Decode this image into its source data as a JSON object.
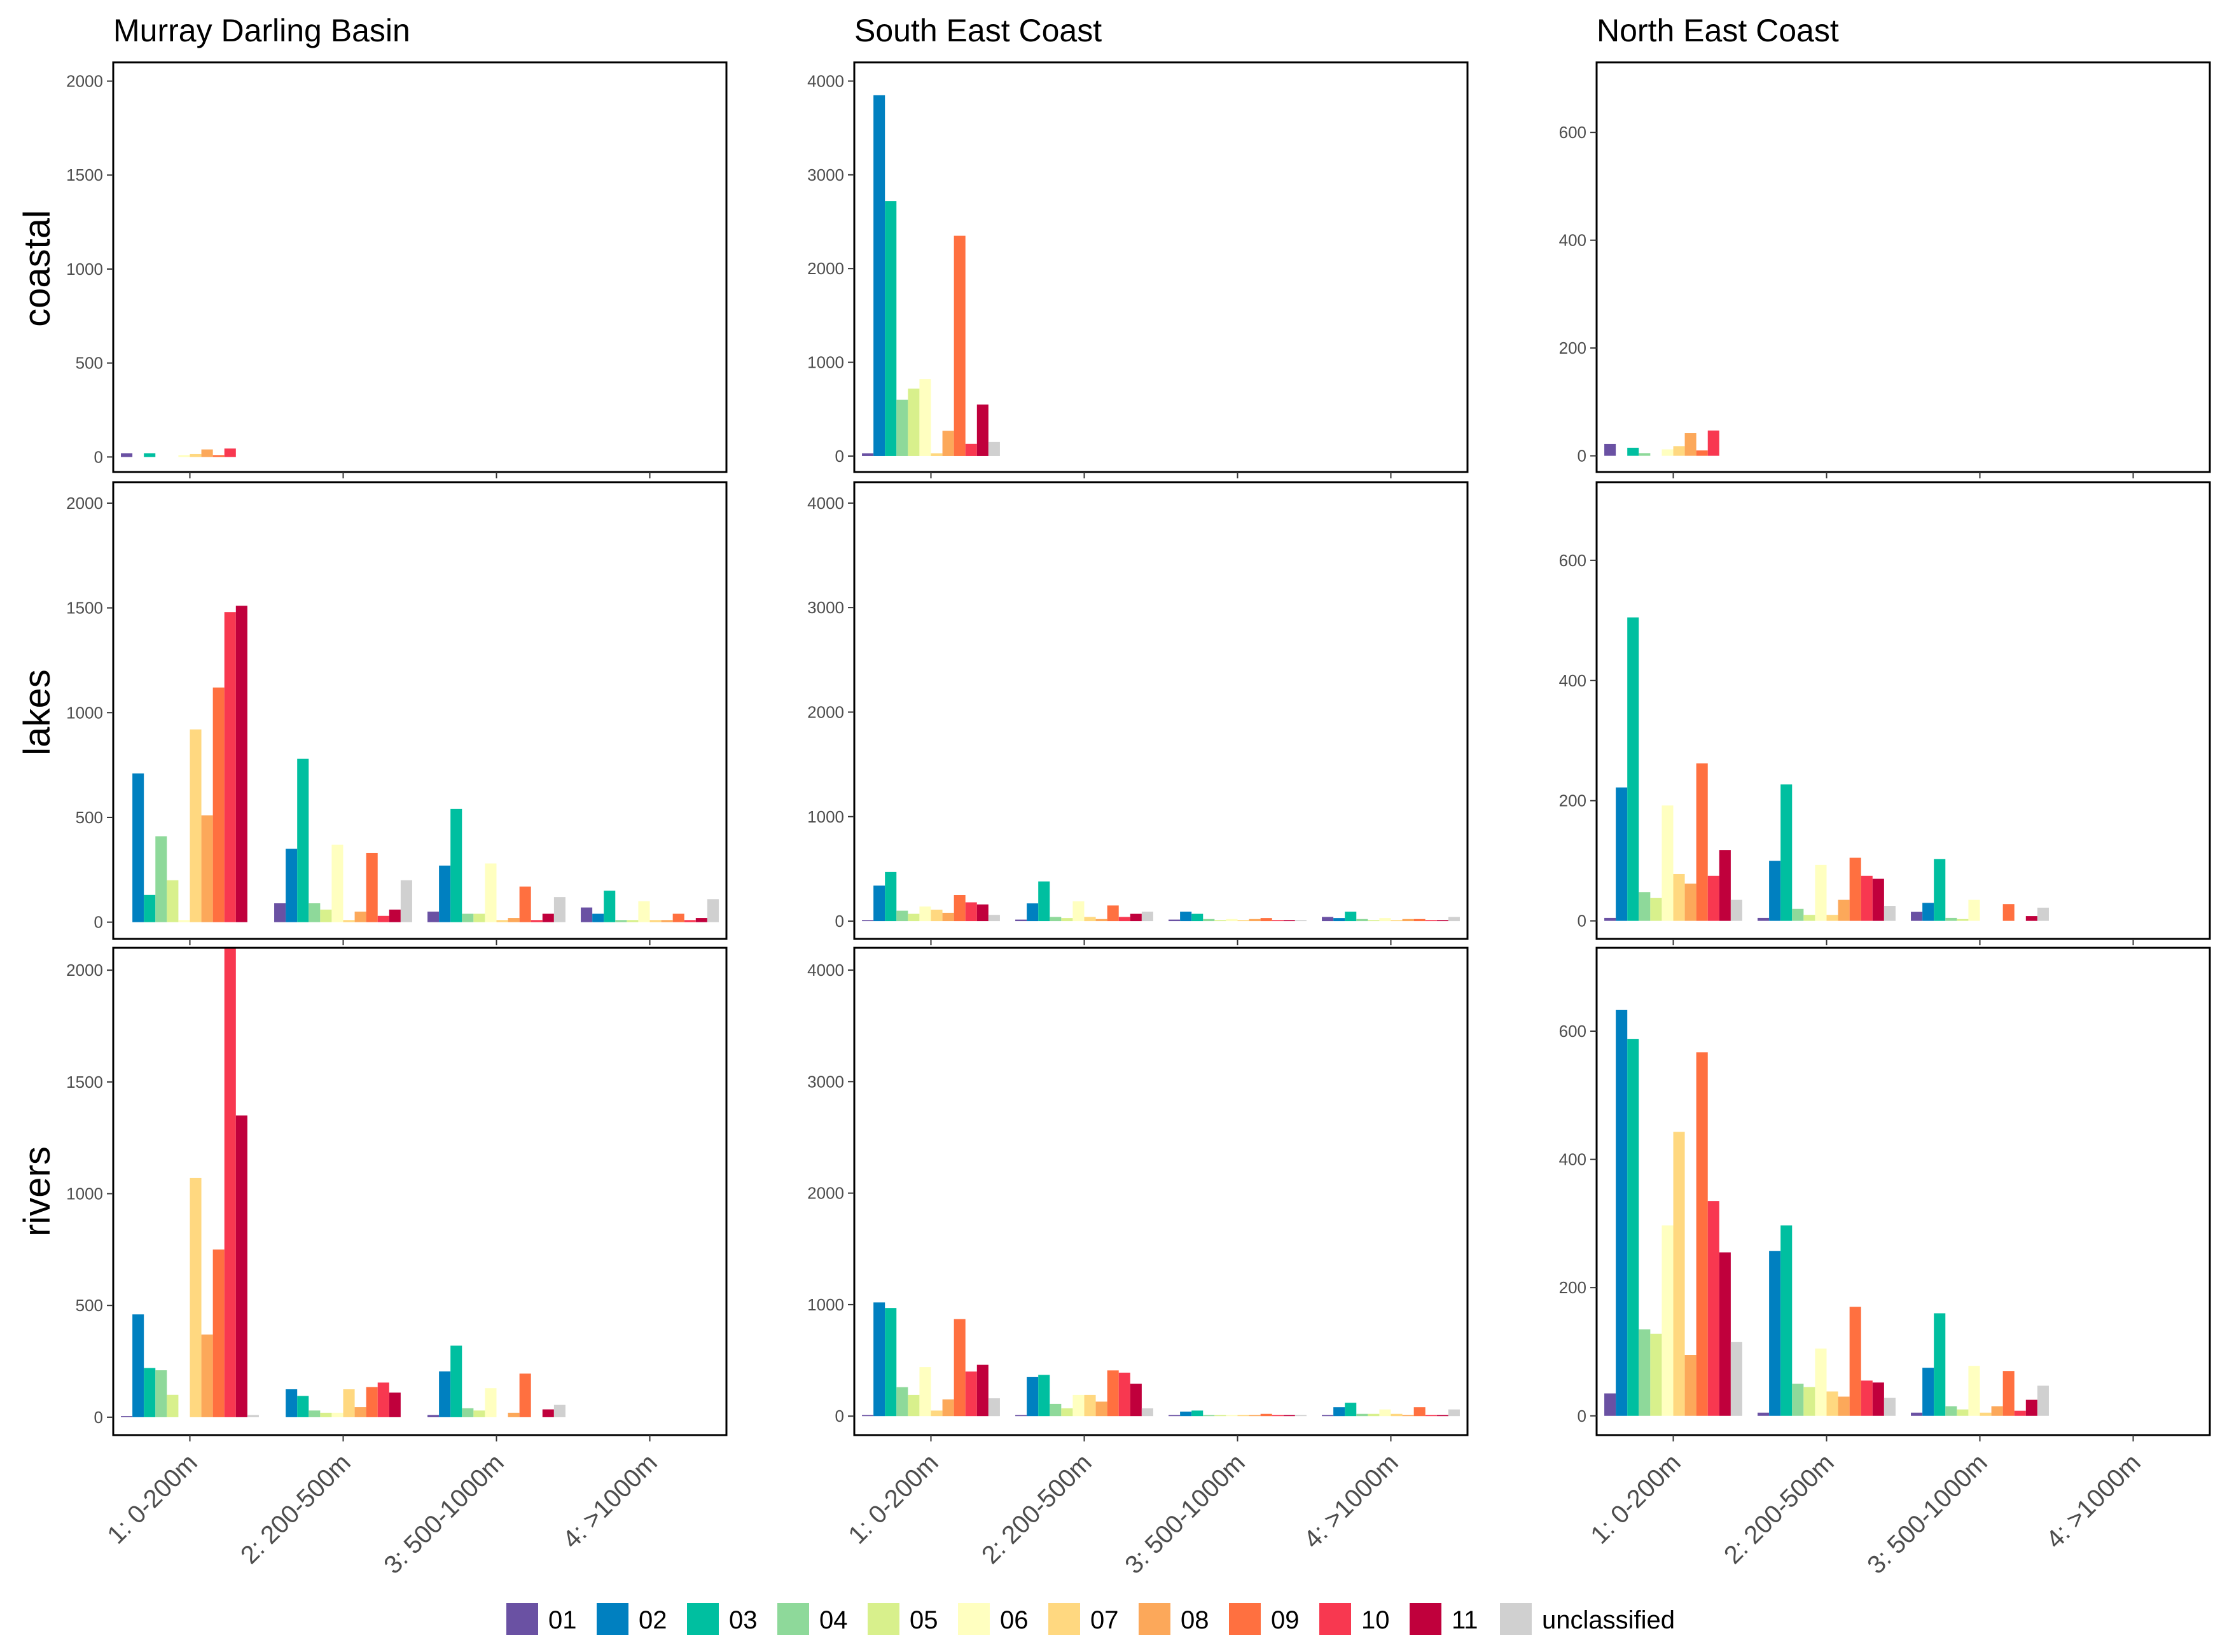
{
  "chart_data": {
    "type": "bar",
    "facet_columns": [
      "Murray Darling Basin",
      "South East Coast",
      "North East Coast"
    ],
    "facet_rows": [
      "coastal",
      "lakes",
      "rivers"
    ],
    "categories": [
      "1: 0-200m",
      "2: 200-500m",
      "3: 500-1000m",
      "4: >1000m"
    ],
    "groups": [
      "01",
      "02",
      "03",
      "04",
      "05",
      "06",
      "07",
      "08",
      "09",
      "10",
      "11",
      "unclassified"
    ],
    "colors": [
      "#6a51a3",
      "#0080c0",
      "#00bfa0",
      "#8ed99a",
      "#d8f08c",
      "#ffffc0",
      "#ffd880",
      "#fca85a",
      "#ff7040",
      "#f83850",
      "#c0003c",
      "#d0d0d0"
    ],
    "axes": {
      "Murray Darling Basin": {
        "ylim": [
          -80,
          2100
        ],
        "ticks": [
          0,
          500,
          1000,
          1500,
          2000
        ]
      },
      "South East Coast": {
        "ylim": [
          -170,
          4200
        ],
        "ticks": [
          0,
          1000,
          2000,
          3000,
          4000
        ]
      },
      "North East Coast": {
        "ylim": [
          -30,
          730
        ],
        "ticks": [
          0,
          200,
          400,
          600
        ]
      }
    },
    "panels": [
      {
        "column": "Murray Darling Basin",
        "row": "coastal",
        "series": [
          [
            20,
            0,
            0,
            0
          ],
          [
            0,
            0,
            0,
            0
          ],
          [
            20,
            0,
            0,
            0
          ],
          [
            0,
            0,
            0,
            0
          ],
          [
            0,
            0,
            0,
            0
          ],
          [
            10,
            0,
            0,
            0
          ],
          [
            15,
            0,
            0,
            0
          ],
          [
            40,
            0,
            0,
            0
          ],
          [
            10,
            0,
            0,
            0
          ],
          [
            45,
            0,
            0,
            0
          ],
          [
            0,
            0,
            0,
            0
          ],
          [
            0,
            0,
            0,
            0
          ]
        ]
      },
      {
        "column": "South East Coast",
        "row": "coastal",
        "series": [
          [
            30,
            0,
            0,
            0
          ],
          [
            3850,
            0,
            0,
            0
          ],
          [
            2720,
            0,
            0,
            0
          ],
          [
            600,
            0,
            0,
            0
          ],
          [
            720,
            0,
            0,
            0
          ],
          [
            820,
            0,
            0,
            0
          ],
          [
            30,
            0,
            0,
            0
          ],
          [
            270,
            0,
            0,
            0
          ],
          [
            2350,
            0,
            0,
            0
          ],
          [
            130,
            0,
            0,
            0
          ],
          [
            550,
            0,
            0,
            0
          ],
          [
            150,
            0,
            0,
            0
          ]
        ]
      },
      {
        "column": "North East Coast",
        "row": "coastal",
        "series": [
          [
            22,
            0,
            0,
            0
          ],
          [
            0,
            0,
            0,
            0
          ],
          [
            15,
            0,
            0,
            0
          ],
          [
            5,
            0,
            0,
            0
          ],
          [
            0,
            0,
            0,
            0
          ],
          [
            12,
            0,
            0,
            0
          ],
          [
            18,
            0,
            0,
            0
          ],
          [
            42,
            0,
            0,
            0
          ],
          [
            10,
            0,
            0,
            0
          ],
          [
            47,
            0,
            0,
            0
          ],
          [
            0,
            0,
            0,
            0
          ],
          [
            0,
            0,
            0,
            0
          ]
        ]
      },
      {
        "column": "Murray Darling Basin",
        "row": "lakes",
        "series": [
          [
            0,
            90,
            50,
            70
          ],
          [
            710,
            350,
            270,
            40
          ],
          [
            130,
            780,
            540,
            150
          ],
          [
            410,
            90,
            40,
            10
          ],
          [
            200,
            60,
            40,
            10
          ],
          [
            10,
            370,
            280,
            100
          ],
          [
            920,
            10,
            10,
            10
          ],
          [
            510,
            50,
            20,
            10
          ],
          [
            1120,
            330,
            170,
            40
          ],
          [
            1480,
            30,
            10,
            10
          ],
          [
            1510,
            60,
            40,
            20
          ],
          [
            0,
            200,
            120,
            110
          ]
        ]
      },
      {
        "column": "South East Coast",
        "row": "lakes",
        "series": [
          [
            10,
            15,
            15,
            40
          ],
          [
            340,
            170,
            90,
            30
          ],
          [
            470,
            380,
            70,
            90
          ],
          [
            100,
            40,
            20,
            20
          ],
          [
            70,
            30,
            10,
            10
          ],
          [
            140,
            190,
            20,
            30
          ],
          [
            110,
            40,
            10,
            10
          ],
          [
            80,
            20,
            20,
            20
          ],
          [
            250,
            150,
            30,
            20
          ],
          [
            180,
            40,
            10,
            10
          ],
          [
            160,
            70,
            10,
            10
          ],
          [
            60,
            90,
            10,
            40
          ]
        ]
      },
      {
        "column": "North East Coast",
        "row": "lakes",
        "series": [
          [
            5,
            5,
            15,
            0
          ],
          [
            222,
            100,
            30,
            0
          ],
          [
            505,
            227,
            103,
            0
          ],
          [
            48,
            20,
            5,
            0
          ],
          [
            38,
            10,
            3,
            0
          ],
          [
            192,
            93,
            35,
            0
          ],
          [
            78,
            10,
            0,
            0
          ],
          [
            62,
            35,
            0,
            0
          ],
          [
            262,
            105,
            28,
            0
          ],
          [
            75,
            75,
            0,
            0
          ],
          [
            118,
            70,
            8,
            0
          ],
          [
            35,
            25,
            22,
            0
          ]
        ]
      },
      {
        "column": "Murray Darling Basin",
        "row": "rivers",
        "series": [
          [
            5,
            0,
            10,
            0
          ],
          [
            460,
            125,
            205,
            0
          ],
          [
            220,
            95,
            320,
            0
          ],
          [
            210,
            30,
            40,
            0
          ],
          [
            100,
            20,
            30,
            0
          ],
          [
            0,
            20,
            130,
            0
          ],
          [
            1070,
            125,
            0,
            0
          ],
          [
            370,
            45,
            20,
            0
          ],
          [
            750,
            135,
            195,
            0
          ],
          [
            2100,
            155,
            0,
            0
          ],
          [
            1350,
            110,
            35,
            0
          ],
          [
            10,
            0,
            55,
            0
          ]
        ]
      },
      {
        "column": "South East Coast",
        "row": "rivers",
        "series": [
          [
            10,
            10,
            10,
            10
          ],
          [
            1020,
            350,
            40,
            80
          ],
          [
            970,
            370,
            50,
            120
          ],
          [
            260,
            110,
            10,
            20
          ],
          [
            190,
            70,
            10,
            20
          ],
          [
            440,
            190,
            10,
            60
          ],
          [
            50,
            190,
            10,
            20
          ],
          [
            150,
            130,
            10,
            10
          ],
          [
            870,
            410,
            20,
            80
          ],
          [
            400,
            390,
            10,
            10
          ],
          [
            460,
            290,
            10,
            10
          ],
          [
            160,
            70,
            10,
            60
          ]
        ]
      },
      {
        "column": "North East Coast",
        "row": "rivers",
        "series": [
          [
            35,
            5,
            5,
            0
          ],
          [
            633,
            257,
            75,
            0
          ],
          [
            588,
            297,
            160,
            0
          ],
          [
            135,
            50,
            15,
            0
          ],
          [
            128,
            45,
            10,
            0
          ],
          [
            297,
            105,
            78,
            0
          ],
          [
            443,
            38,
            5,
            0
          ],
          [
            95,
            30,
            15,
            0
          ],
          [
            567,
            170,
            70,
            0
          ],
          [
            335,
            55,
            8,
            0
          ],
          [
            255,
            52,
            25,
            0
          ],
          [
            115,
            28,
            47,
            0
          ]
        ]
      }
    ]
  }
}
